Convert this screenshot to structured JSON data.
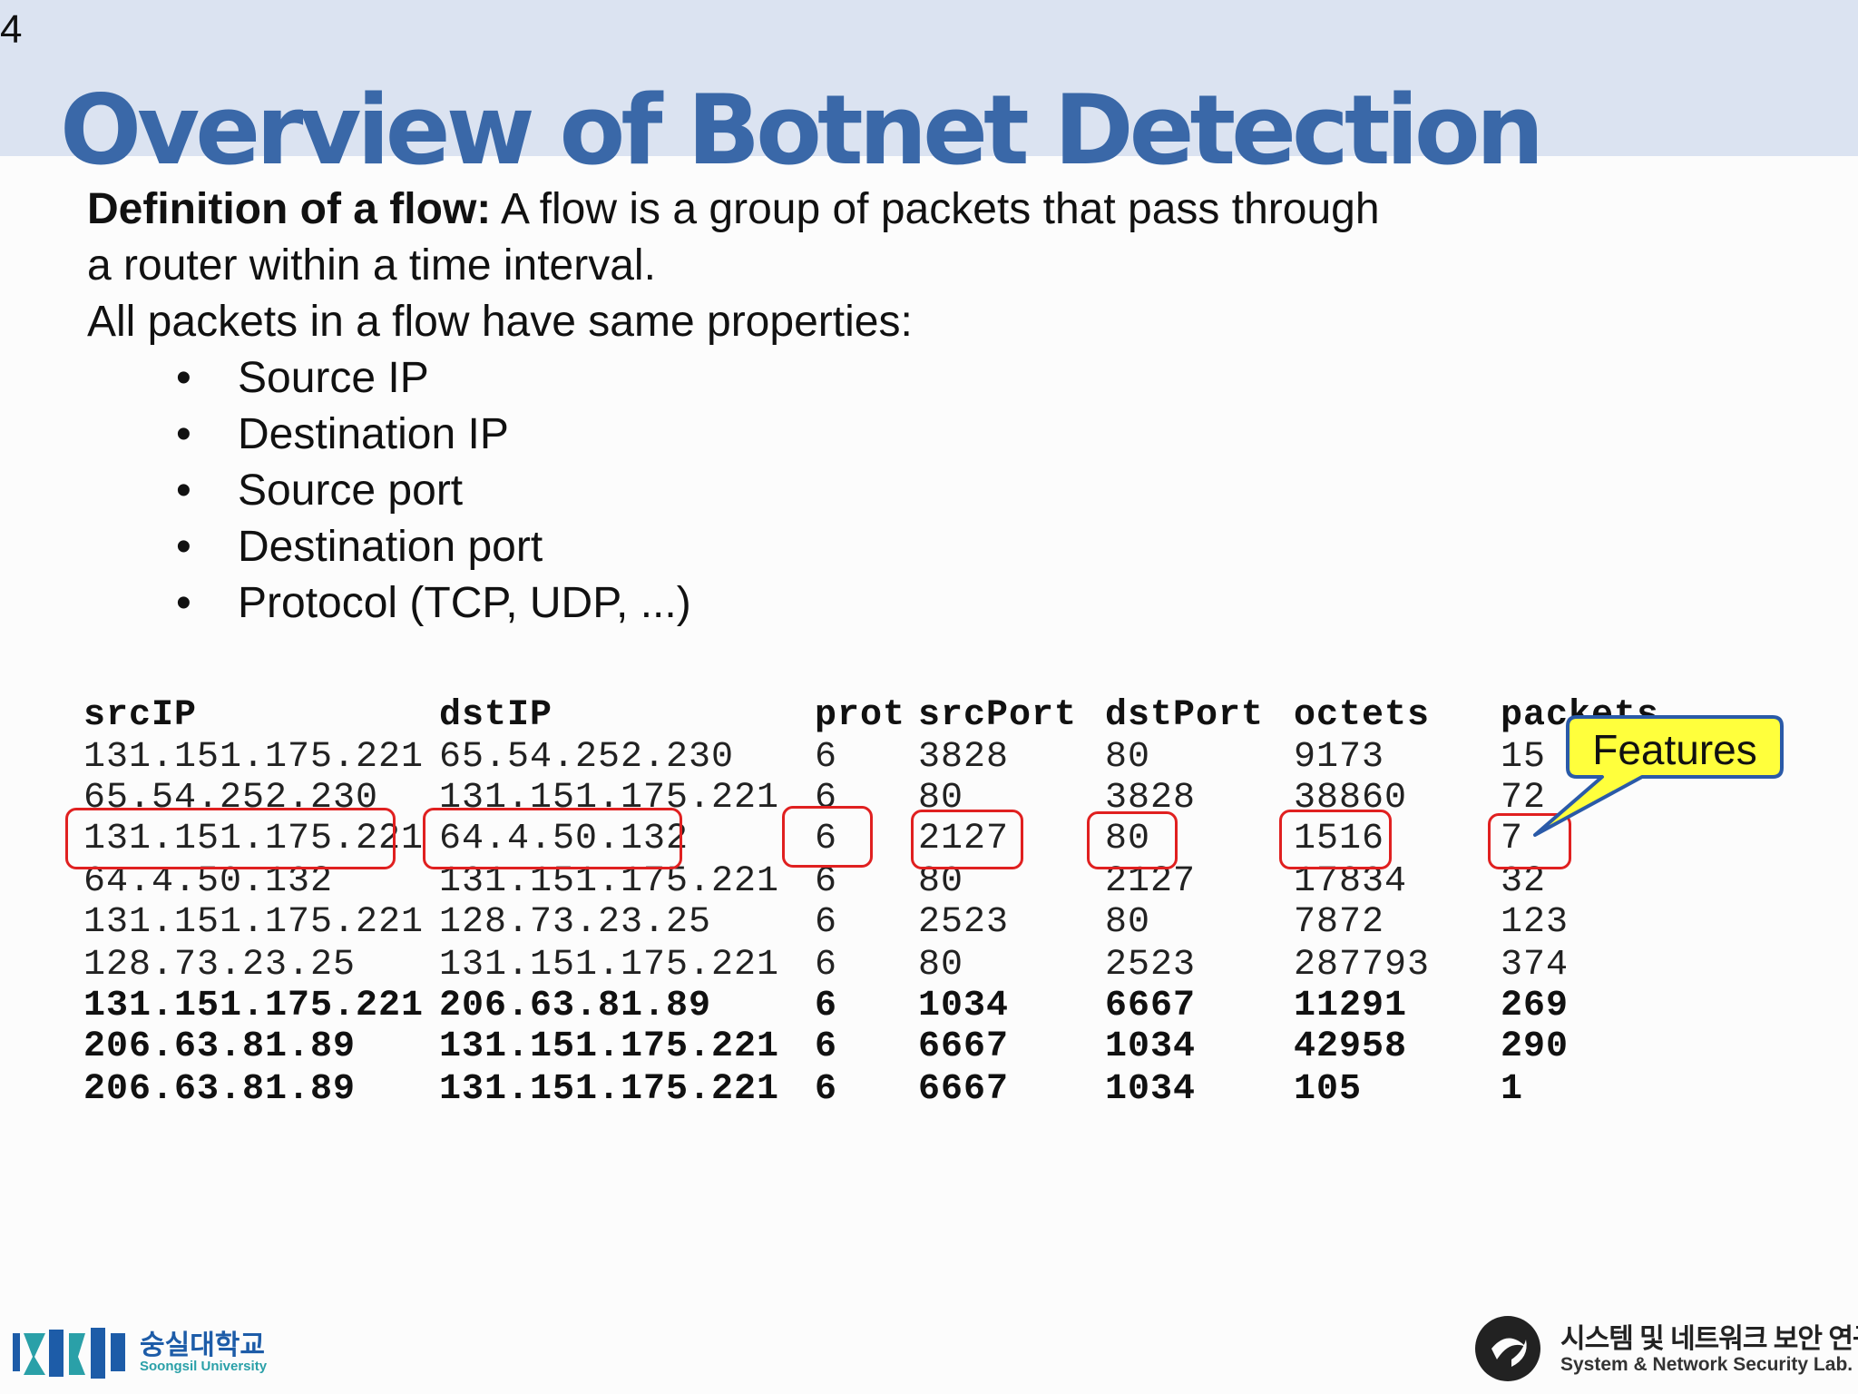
{
  "slide_number": "4",
  "title": "Overview of Botnet Detection",
  "definition": {
    "label": "Definition of a flow:",
    "text_line1": " A flow is a group of packets that pass through",
    "text_line2": "a router within a time interval."
  },
  "properties_intro": "All packets in a flow have same properties:",
  "bullet_char": "•",
  "properties": [
    "Source IP",
    "Destination IP",
    "Source port",
    "Destination port",
    "Protocol (TCP, UDP, ...)"
  ],
  "flow_table": {
    "columns": [
      "srcIP",
      "dstIP",
      "prot",
      "srcPort",
      "dstPort",
      "octets",
      "packets"
    ],
    "rows": [
      {
        "values": [
          "131.151.175.221",
          "65.54.252.230",
          "6",
          "3828",
          "80",
          "9173",
          "15"
        ],
        "bold": false,
        "highlighted": false
      },
      {
        "values": [
          "65.54.252.230",
          "131.151.175.221",
          "6",
          "80",
          "3828",
          "38860",
          "72"
        ],
        "bold": false,
        "highlighted": false
      },
      {
        "values": [
          "131.151.175.221",
          "64.4.50.132",
          "6",
          "2127",
          "80",
          "1516",
          "7"
        ],
        "bold": false,
        "highlighted": true
      },
      {
        "values": [
          "64.4.50.132",
          "131.151.175.221",
          "6",
          "80",
          "2127",
          "17834",
          "32"
        ],
        "bold": false,
        "highlighted": false
      },
      {
        "values": [
          "131.151.175.221",
          "128.73.23.25",
          "6",
          "2523",
          "80",
          "7872",
          "123"
        ],
        "bold": false,
        "highlighted": false
      },
      {
        "values": [
          "128.73.23.25",
          "131.151.175.221",
          "6",
          "80",
          "2523",
          "287793",
          "374"
        ],
        "bold": false,
        "highlighted": false
      },
      {
        "values": [
          "131.151.175.221",
          "206.63.81.89",
          "6",
          "1034",
          "6667",
          "11291",
          "269"
        ],
        "bold": true,
        "highlighted": false
      },
      {
        "values": [
          "206.63.81.89",
          "131.151.175.221",
          "6",
          "6667",
          "1034",
          "42958",
          "290"
        ],
        "bold": true,
        "highlighted": false
      },
      {
        "values": [
          "206.63.81.89",
          "131.151.175.221",
          "6",
          "6667",
          "1034",
          "105",
          "1"
        ],
        "bold": true,
        "highlighted": false
      }
    ]
  },
  "callout": {
    "label": "Features"
  },
  "footer": {
    "university_korean": "숭실대학교",
    "university_english": "Soongsil University",
    "lab_korean": "시스템 및 네트워크 보안 연구실",
    "lab_english": "System & Network Security Lab."
  },
  "colors": {
    "title": "#3a68a8",
    "header_band": "#dbe3f1",
    "highlight_box": "#e02020",
    "callout_fill": "#ffff3c",
    "callout_border": "#2a5aa8",
    "univ_blue": "#1d5ca8",
    "univ_teal": "#2aa0a8"
  }
}
